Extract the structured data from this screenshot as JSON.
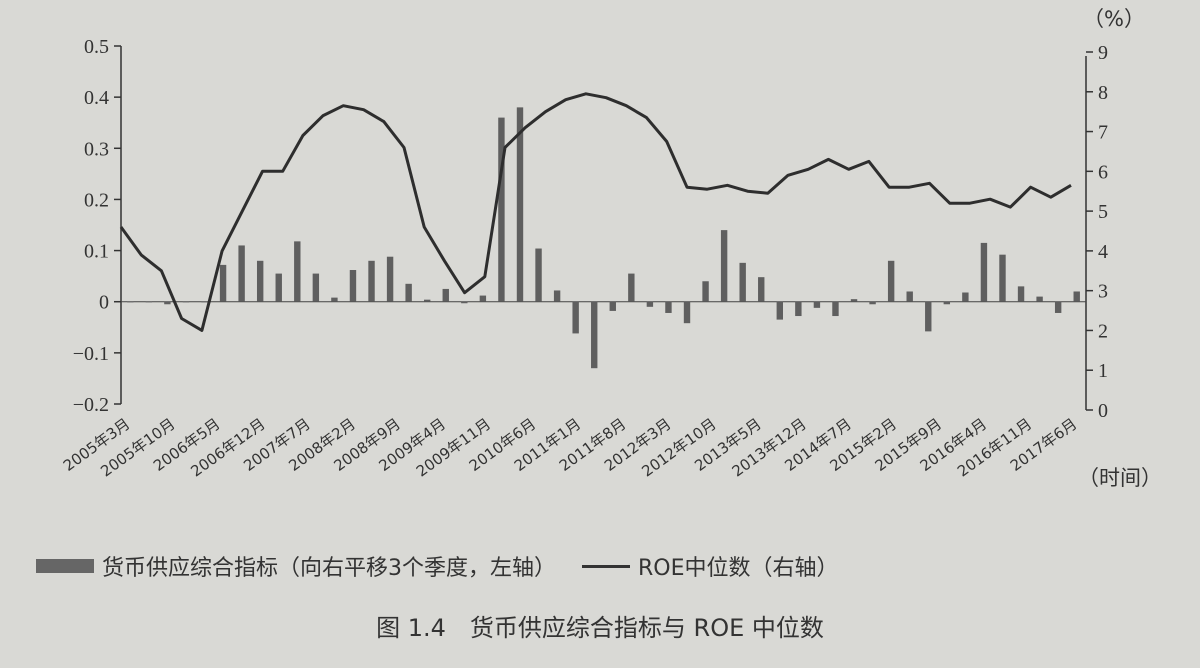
{
  "figure_caption": "图 1.4　货币供应综合指标与 ROE 中位数",
  "legend": {
    "bar_label": "货币供应综合指标（向右平移3个季度，左轴）",
    "line_label": "ROE中位数（右轴）"
  },
  "chart_data": {
    "type": "bar+line",
    "title": "",
    "xlabel": "（时间）",
    "ylabel_left": "",
    "ylabel_right": "（%）",
    "y_left": {
      "ylim": [
        -0.2,
        0.5
      ],
      "ticks": [
        "0.5",
        "0.4",
        "0.3",
        "0.2",
        "0.1",
        "0",
        "−0.1",
        "−0.2"
      ],
      "tick_values": [
        0.5,
        0.4,
        0.3,
        0.2,
        0.1,
        0,
        -0.1,
        -0.2
      ]
    },
    "y_right": {
      "ylim": [
        0,
        9
      ],
      "ticks": [
        "9",
        "8",
        "7",
        "6",
        "5",
        "4",
        "3",
        "2",
        "1",
        "0"
      ],
      "tick_values": [
        9,
        8,
        7,
        6,
        5,
        4,
        3,
        2,
        1,
        0
      ]
    },
    "grid": false,
    "legend_position": "bottom",
    "x_tick_labels": [
      "2005年3月",
      "2005年10月",
      "2006年5月",
      "2006年12月",
      "2007年7月",
      "2008年2月",
      "2008年9月",
      "2009年4月",
      "2009年11月",
      "2010年6月",
      "2011年1月",
      "2011年8月",
      "2012年3月",
      "2012年10月",
      "2013年5月",
      "2013年12月",
      "2014年7月",
      "2015年2月",
      "2015年9月",
      "2016年4月",
      "2016年11月",
      "2017年6月"
    ],
    "series": [
      {
        "name": "货币供应综合指标（向右平移3个季度，左轴）",
        "type": "bar",
        "axis": "left",
        "color": "#5f5f5f",
        "values": [
          0,
          0,
          -0.005,
          0,
          0,
          0.072,
          0.11,
          0.08,
          0.055,
          0.118,
          0.055,
          0.008,
          0.062,
          0.08,
          0.088,
          0.035,
          0.004,
          0.025,
          -0.003,
          0.012,
          0.36,
          0.38,
          0.104,
          0.022,
          -0.062,
          -0.13,
          -0.018,
          0.055,
          -0.01,
          -0.022,
          -0.042,
          0.04,
          0.14,
          0.076,
          0.048,
          -0.035,
          -0.028,
          -0.012,
          -0.028,
          0.005,
          -0.005,
          0.08,
          0.02,
          -0.058,
          -0.005,
          0.018,
          0.115,
          0.092,
          0.03,
          0.01,
          -0.022,
          0.02
        ]
      },
      {
        "name": "ROE中位数（右轴）",
        "type": "line",
        "axis": "right",
        "color": "#2e2e2e",
        "values": [
          4.6,
          3.9,
          3.5,
          2.3,
          2.0,
          4.0,
          5.0,
          6.0,
          6.0,
          6.9,
          7.4,
          7.65,
          7.55,
          7.25,
          6.6,
          4.6,
          3.75,
          2.95,
          3.35,
          6.6,
          7.1,
          7.5,
          7.8,
          7.95,
          7.85,
          7.65,
          7.35,
          6.75,
          5.6,
          5.55,
          5.65,
          5.5,
          5.45,
          5.9,
          6.05,
          6.3,
          6.05,
          6.25,
          5.6,
          5.6,
          5.7,
          5.2,
          5.2,
          5.3,
          5.1,
          5.6,
          5.35,
          5.65
        ]
      }
    ]
  }
}
